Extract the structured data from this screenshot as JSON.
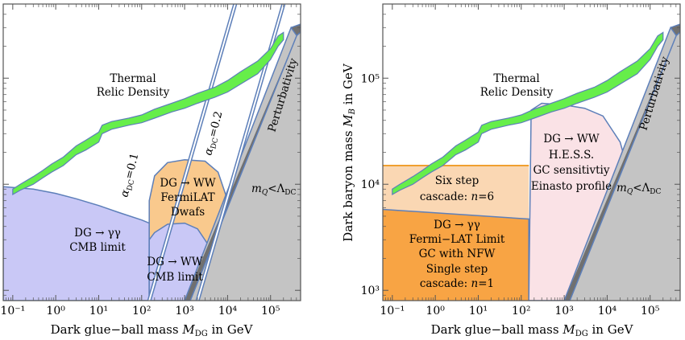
{
  "chart_data": [
    {
      "type": "area",
      "x_ticks": [
        "10⁻¹",
        "10⁰",
        "10¹",
        "10²",
        "10³",
        "10⁴",
        "10⁵"
      ],
      "xlabel": "Dark glue−ball mass M_DG in GeV",
      "x_scale": "log",
      "xlim": [
        0.06,
        500000
      ],
      "ylim": [
        800,
        500000
      ],
      "y_scale": "log",
      "colors": {
        "thermal": "#66ee4a",
        "gamma_cmb": "#c9c8f6",
        "ww_fermi": "#f9c98d",
        "ww_cmb": "#c9c8f6",
        "perturbativity": "#c4c4c4",
        "line": "#5d7fb9"
      },
      "thermal_band": {
        "x": [
          0.1,
          0.15,
          0.3,
          0.5,
          0.8,
          1.5,
          3,
          5,
          10,
          12,
          20,
          50,
          100,
          200,
          500,
          1000,
          2000,
          5000,
          10000,
          20000,
          50000,
          100000,
          150000,
          200000
        ],
        "y_low": [
          8000,
          8800,
          10000,
          11500,
          13000,
          15000,
          19000,
          21000,
          25000,
          30000,
          33000,
          36000,
          38000,
          42000,
          48000,
          52000,
          58000,
          66000,
          74000,
          88000,
          110000,
          150000,
          200000,
          230000
        ],
        "y_high": [
          9000,
          10000,
          11800,
          13500,
          15500,
          18000,
          23000,
          26000,
          31000,
          36000,
          39000,
          42000,
          45000,
          51000,
          58000,
          64000,
          72000,
          82000,
          95000,
          115000,
          145000,
          190000,
          250000,
          270000
        ]
      },
      "gamma_cmb_boundary": {
        "x": [
          0.06,
          0.3,
          1,
          3,
          10,
          30,
          100,
          150
        ],
        "y": [
          9500,
          9000,
          8200,
          7300,
          6300,
          5400,
          4600,
          4300
        ]
      },
      "alpha_lines": [
        {
          "label": "αDC=0.1",
          "x_bottom": 150,
          "x_top": 15000
        },
        {
          "label": "αDC=0.2",
          "x_bottom": 2000,
          "x_top": 200000
        }
      ],
      "ww_fermi_boundary": {
        "x": [
          150,
          200,
          400,
          1000,
          3000,
          6000,
          9000
        ],
        "y": [
          7000,
          12000,
          16000,
          17000,
          16500,
          13000,
          8000
        ]
      },
      "ww_cmb_boundary": {
        "x": [
          150,
          200,
          400,
          1000,
          2000,
          4000
        ],
        "y": [
          3000,
          3500,
          4200,
          4300,
          3800,
          2500
        ]
      },
      "labels": {
        "thermal_1": "Thermal",
        "thermal_2": "Relic Density",
        "alpha1": "α",
        "alpha1_sub": "DC",
        "alpha1_val": "=0.1",
        "alpha2": "α",
        "alpha2_sub": "DC",
        "alpha2_val": "=0.2",
        "fermi_1": "DG → WW",
        "fermi_2": "FermiLAT",
        "fermi_3": "Dwafs",
        "gamma_1": "DG → γγ",
        "gamma_2": "CMB limit",
        "wwcmb_1": "DG → WW",
        "wwcmb_2": "CMB limit",
        "mq": "m",
        "mq_sub": "Q",
        "mq_lt": "<Λ",
        "mq_sub2": "DC",
        "perturbativity": "Perturbativity"
      }
    },
    {
      "type": "area",
      "x_ticks": [
        "10⁻¹",
        "10⁰",
        "10¹",
        "10²",
        "10³",
        "10⁴",
        "10⁵"
      ],
      "y_ticks": [
        "10³",
        "10⁴",
        "10⁵"
      ],
      "xlabel": "Dark glue−ball mass M_DG in GeV",
      "ylabel": "Dark baryon mass M_B in GeV",
      "x_scale": "log",
      "y_scale": "log",
      "xlim": [
        0.06,
        500000
      ],
      "ylim": [
        800,
        500000
      ],
      "colors": {
        "thermal": "#66ee4a",
        "six_step": "#fad7b3",
        "six_step_line": "#f0a030",
        "fermi_gc": "#f8a444",
        "hess": "#f9dde2",
        "perturbativity": "#c4c4c4",
        "line": "#5d7fb9"
      },
      "six_step_band": {
        "x": [
          0.06,
          150
        ],
        "y_low_left": 5800,
        "y_low_right": 4700,
        "y_high": 15000
      },
      "fermi_gc_region": {
        "x": [
          0.06,
          150
        ],
        "y_high_left": 5800,
        "y_high_right": 4700
      },
      "hess_boundary": {
        "x": [
          150,
          170,
          300,
          1000,
          3000,
          8000,
          20000,
          40000
        ],
        "y": [
          800,
          50000,
          58000,
          56000,
          52000,
          44000,
          25000,
          9000
        ]
      },
      "labels": {
        "thermal_1": "Thermal",
        "thermal_2": "Relic Density",
        "six_1": "Six step",
        "six_2": "cascade: ",
        "six_n": "n",
        "six_val": "=6",
        "gc_1": "DG → γγ",
        "gc_2": "Fermi−LAT Limit",
        "gc_3": "GC with NFW",
        "gc_4": "Single step",
        "gc_5": "cascade: ",
        "gc_n": "n",
        "gc_val": "=1",
        "hess_1": "DG → WW",
        "hess_2": "H.E.S.S.",
        "hess_3": "GC sensitivtiy",
        "hess_4": "Einasto profile",
        "mq": "m",
        "mq_sub": "Q",
        "mq_lt": "<Λ",
        "mq_sub2": "DC",
        "perturbativity": "Perturbativity"
      }
    }
  ]
}
